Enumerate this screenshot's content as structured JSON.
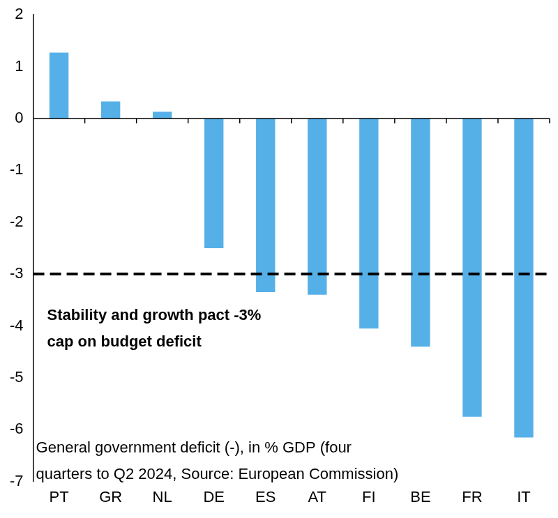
{
  "chart_data": {
    "type": "bar",
    "categories": [
      "PT",
      "GR",
      "NL",
      "DE",
      "ES",
      "AT",
      "FI",
      "BE",
      "FR",
      "IT"
    ],
    "values": [
      1.27,
      0.33,
      0.13,
      -2.5,
      -3.35,
      -3.4,
      -4.05,
      -4.4,
      -5.75,
      -6.15
    ],
    "color": "#56b0e8",
    "ylim": [
      -7,
      2
    ],
    "yticks": [
      -7,
      -6,
      -5,
      -4,
      -3,
      -2,
      -1,
      0,
      1,
      2
    ],
    "grid": false,
    "reference_line": {
      "value": -3,
      "label": [
        "Stability and growth pact -3%",
        "cap on budget deficit"
      ]
    },
    "caption": [
      "General government deficit (-), in % GDP (four",
      "quarters to Q2 2024, Source: European Commission)"
    ]
  }
}
